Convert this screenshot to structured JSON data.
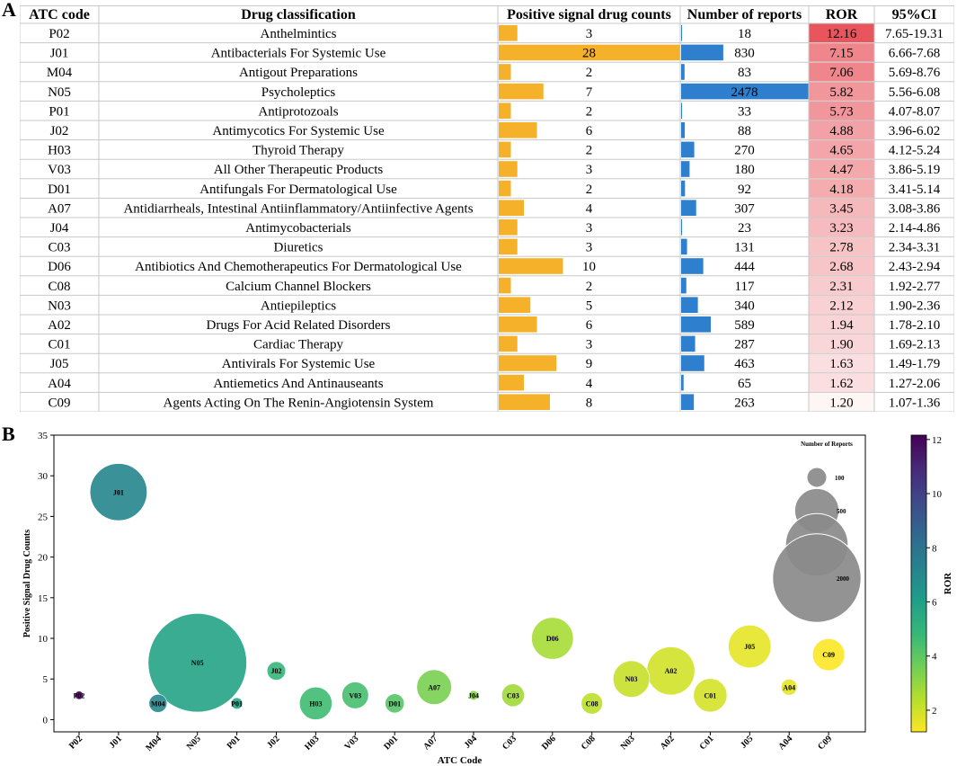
{
  "panels": {
    "a": "A",
    "b": "B"
  },
  "table": {
    "headers": [
      "ATC code",
      "Drug classification",
      "Positive signal drug counts",
      "Number of reports",
      "ROR",
      "95%CI"
    ],
    "rows": [
      {
        "code": "P02",
        "name": "Anthelmintics",
        "count": 3,
        "reports": 18,
        "ror": "12.16",
        "ci": "7.65-19.31"
      },
      {
        "code": "J01",
        "name": "Antibacterials For Systemic Use",
        "count": 28,
        "reports": 830,
        "ror": "7.15",
        "ci": "6.66-7.68"
      },
      {
        "code": "M04",
        "name": "Antigout Preparations",
        "count": 2,
        "reports": 83,
        "ror": "7.06",
        "ci": "5.69-8.76"
      },
      {
        "code": "N05",
        "name": "Psycholeptics",
        "count": 7,
        "reports": 2478,
        "ror": "5.82",
        "ci": "5.56-6.08"
      },
      {
        "code": "P01",
        "name": "Antiprotozoals",
        "count": 2,
        "reports": 33,
        "ror": "5.73",
        "ci": "4.07-8.07"
      },
      {
        "code": "J02",
        "name": "Antimycotics For Systemic Use",
        "count": 6,
        "reports": 88,
        "ror": "4.88",
        "ci": "3.96-6.02"
      },
      {
        "code": "H03",
        "name": "Thyroid Therapy",
        "count": 2,
        "reports": 270,
        "ror": "4.65",
        "ci": "4.12-5.24"
      },
      {
        "code": "V03",
        "name": "All Other Therapeutic Products",
        "count": 3,
        "reports": 180,
        "ror": "4.47",
        "ci": "3.86-5.19"
      },
      {
        "code": "D01",
        "name": "Antifungals For Dermatological Use",
        "count": 2,
        "reports": 92,
        "ror": "4.18",
        "ci": "3.41-5.14"
      },
      {
        "code": "A07",
        "name": "Antidiarrheals, Intestinal Antiinflammatory/Antiinfective Agents",
        "count": 4,
        "reports": 307,
        "ror": "3.45",
        "ci": "3.08-3.86"
      },
      {
        "code": "J04",
        "name": "Antimycobacterials",
        "count": 3,
        "reports": 23,
        "ror": "3.23",
        "ci": "2.14-4.86"
      },
      {
        "code": "C03",
        "name": "Diuretics",
        "count": 3,
        "reports": 131,
        "ror": "2.78",
        "ci": "2.34-3.31"
      },
      {
        "code": "D06",
        "name": "Antibiotics And Chemotherapeutics For Dermatological Use",
        "count": 10,
        "reports": 444,
        "ror": "2.68",
        "ci": "2.43-2.94"
      },
      {
        "code": "C08",
        "name": "Calcium Channel Blockers",
        "count": 2,
        "reports": 117,
        "ror": "2.31",
        "ci": "1.92-2.77"
      },
      {
        "code": "N03",
        "name": "Antiepileptics",
        "count": 5,
        "reports": 340,
        "ror": "2.12",
        "ci": "1.90-2.36"
      },
      {
        "code": "A02",
        "name": "Drugs For Acid Related Disorders",
        "count": 6,
        "reports": 589,
        "ror": "1.94",
        "ci": "1.78-2.10"
      },
      {
        "code": "C01",
        "name": "Cardiac Therapy",
        "count": 3,
        "reports": 287,
        "ror": "1.90",
        "ci": "1.69-2.13"
      },
      {
        "code": "J05",
        "name": "Antivirals For Systemic Use",
        "count": 9,
        "reports": 463,
        "ror": "1.63",
        "ci": "1.49-1.79"
      },
      {
        "code": "A04",
        "name": "Antiemetics And Antinauseants",
        "count": 4,
        "reports": 65,
        "ror": "1.62",
        "ci": "1.27-2.06"
      },
      {
        "code": "C09",
        "name": "Agents Acting On The Renin-Angiotensin System",
        "count": 8,
        "reports": 263,
        "ror": "1.20",
        "ci": "1.07-1.36"
      }
    ]
  },
  "colors": {
    "count_bar": "#f5b12a",
    "report_bar": "#2f7fcf",
    "ror_max": "#e8555c",
    "grid": "#c8c8c8"
  },
  "chart_data": {
    "type": "scatter",
    "xlabel": "ATC Code",
    "ylabel": "Positive Signal Drug Counts",
    "ylim": [
      -1.5,
      35
    ],
    "yticks": [
      0,
      5,
      10,
      15,
      20,
      25,
      30,
      35
    ],
    "categories": [
      "P02",
      "J01",
      "M04",
      "N05",
      "P01",
      "J02",
      "H03",
      "V03",
      "D01",
      "A07",
      "J04",
      "C03",
      "D06",
      "C08",
      "N03",
      "A02",
      "C01",
      "J05",
      "A04",
      "C09"
    ],
    "counts": [
      3,
      28,
      2,
      7,
      2,
      6,
      2,
      3,
      2,
      4,
      3,
      3,
      10,
      2,
      5,
      6,
      3,
      9,
      4,
      8
    ],
    "reports": [
      18,
      830,
      83,
      2478,
      33,
      88,
      270,
      180,
      92,
      307,
      23,
      131,
      444,
      117,
      340,
      589,
      287,
      463,
      65,
      263
    ],
    "ror": [
      12.16,
      7.15,
      7.06,
      5.82,
      5.73,
      4.88,
      4.65,
      4.47,
      4.18,
      3.45,
      3.23,
      2.78,
      2.68,
      2.31,
      2.12,
      1.94,
      1.9,
      1.63,
      1.62,
      1.2
    ],
    "size_legend": {
      "title": "Number of Reports",
      "values": [
        100,
        500,
        1000,
        2000
      ],
      "labels": [
        "100",
        "500",
        "",
        "2000"
      ]
    },
    "colorbar": {
      "label": "ROR",
      "ticks": [
        2,
        4,
        6,
        8,
        10,
        12
      ],
      "range": [
        1.2,
        12.16
      ]
    }
  }
}
